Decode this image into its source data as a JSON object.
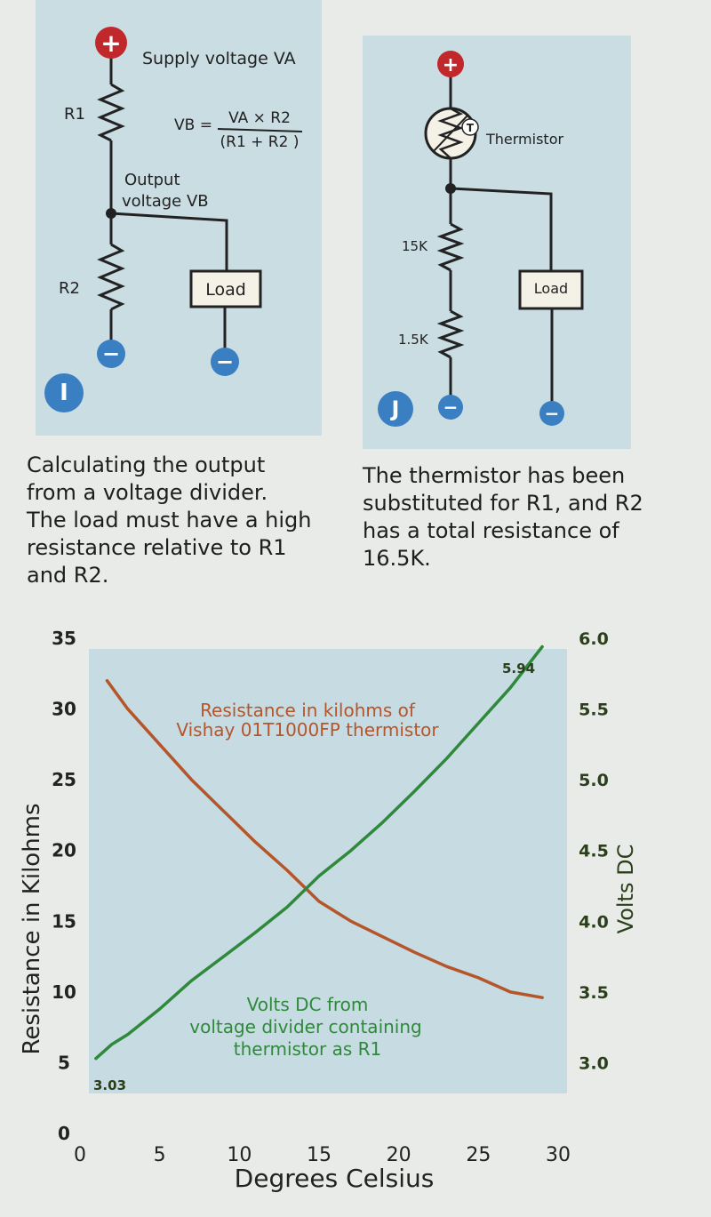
{
  "diagram_i": {
    "supply_label": "Supply voltage VA",
    "r1_label": "R1",
    "r2_label": "R2",
    "formula_lhs": "VB =",
    "formula_num": "VA × R2",
    "formula_den": "(R1 + R2 )",
    "output_label_1": "Output",
    "output_label_2": "voltage VB",
    "load_label": "Load",
    "badge": "I",
    "plus": "+",
    "minus": "−"
  },
  "diagram_j": {
    "thermistor_label": "Thermistor",
    "thermistor_symbol": "T",
    "r_top_label": "15K",
    "r_bottom_label": "1.5K",
    "load_label": "Load",
    "badge": "J",
    "plus": "+",
    "minus": "−"
  },
  "captions": {
    "left": [
      "Calculating the output",
      "from a voltage divider.",
      "The load must have a high",
      "resistance relative to R1",
      "and R2."
    ],
    "right": [
      "The thermistor has been",
      "substituted for R1, and R2",
      "has a total resistance of",
      "16.5K."
    ]
  },
  "colors": {
    "resistance": "#b5552a",
    "volts": "#2e8a3a",
    "left_axis": "#222222",
    "right_axis": "#2a3f1a",
    "grid_bg": "#c7dbe2",
    "badge": "#3a7fc1",
    "plus_terminal": "#c0282c",
    "minus_terminal": "#3a7fc1"
  },
  "chart_data": {
    "type": "line",
    "xlabel": "Degrees Celsius",
    "ylabel_left": "Resistance in Kilohms",
    "ylabel_right": "Volts DC",
    "x_ticks": [
      0,
      5,
      10,
      15,
      20,
      25,
      30
    ],
    "y_left_ticks": [
      0,
      5,
      10,
      15,
      20,
      25,
      30,
      35
    ],
    "y_right_ticks": [
      "3.0",
      "3.5",
      "4.0",
      "4.5",
      "5.0",
      "5.5",
      "6.0"
    ],
    "ylim_left": [
      0,
      35
    ],
    "ylim_right": [
      2.5,
      6.0
    ],
    "xlim": [
      0,
      30
    ],
    "series": [
      {
        "name": "Resistance in kilohms of Vishay 01T1000FP thermistor",
        "axis": "left",
        "x": [
          1.7,
          3,
          5,
          7,
          9,
          11,
          13,
          15,
          17,
          19,
          21,
          23,
          25,
          27,
          29
        ],
        "y": [
          32.0,
          30.0,
          27.5,
          25.0,
          22.8,
          20.6,
          18.6,
          16.4,
          15.0,
          13.9,
          12.8,
          11.8,
          11.0,
          10.0,
          9.6
        ]
      },
      {
        "name": "Volts DC from voltage divider containing thermistor as R1",
        "axis": "right",
        "x": [
          1,
          2,
          3,
          5,
          7,
          9,
          11,
          13,
          15,
          17,
          19,
          21,
          23,
          25,
          27,
          29
        ],
        "y": [
          3.03,
          3.13,
          3.2,
          3.38,
          3.58,
          3.75,
          3.92,
          4.1,
          4.32,
          4.5,
          4.7,
          4.92,
          5.15,
          5.4,
          5.65,
          5.94
        ]
      }
    ],
    "annotations": {
      "resistance_1": "Resistance in kilohms of",
      "resistance_2": "Vishay 01T1000FP thermistor",
      "volts_1": "Volts DC from",
      "volts_2": "voltage divider containing",
      "volts_3": "thermistor as R1",
      "start_value": "3.03",
      "end_value": "5.94"
    }
  }
}
